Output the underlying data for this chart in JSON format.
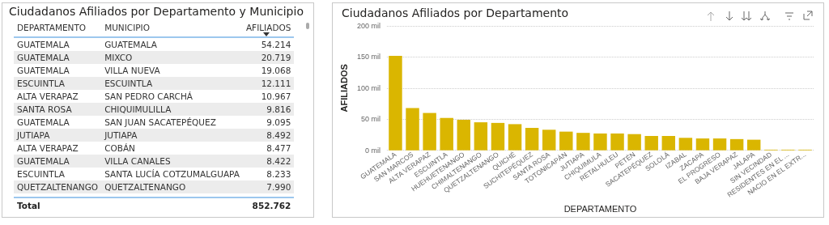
{
  "chart_data": [
    {
      "type": "other",
      "title": "Ciudadanos Afiliados por Departamento y Municipio",
      "annotations": [
        "DEPARTAMENTO",
        "MUNICIPIO",
        "AFILIADOS",
        "GUATEMALA",
        "GUATEMALA",
        "54.214",
        "GUATEMALA",
        "MIXCO",
        "20.719",
        "GUATEMALA",
        "VILLA NUEVA",
        "19.068",
        "ESCUINTLA",
        "ESCUINTLA",
        "12.111",
        "ALTA VERAPAZ",
        "SAN PEDRO CARCHÁ",
        "10.967",
        "SANTA ROSA",
        "CHIQUIMULILLA",
        "9.816",
        "GUATEMALA",
        "SAN JUAN SACATEPÉQUEZ",
        "9.095",
        "JUTIAPA",
        "JUTIAPA",
        "8.492",
        "ALTA VERAPAZ",
        "COBÁN",
        "8.477",
        "GUATEMALA",
        "VILLA CANALES",
        "8.422",
        "ESCUINTLA",
        "SANTA LUCÍA COTZUMALGUAPA",
        "8.233",
        "QUETZALTENANGO",
        "QUETZALTENANGO",
        "7.990",
        "Total",
        "852.762"
      ]
    },
    {
      "type": "bar",
      "title": "Ciudadanos Afiliados por Departamento",
      "xlabel": "DEPARTAMENTO",
      "ylabel": "AFILIADOS",
      "categories": [
        "GUATEMALA",
        "SAN MARCOS",
        "ALTA VERAPAZ",
        "ESCUINTLA",
        "HUEHUETENANGO",
        "CHIMALTENANGO",
        "QUETZALTENANGO",
        "QUICHÉ",
        "SUCHITEPÉQUEZ",
        "SANTA ROSA",
        "TOTONICAPÁN",
        "JUTIAPA",
        "CHIQUIMULA",
        "RETALHULEU",
        "PETÉN",
        "SACATEPÉQUEZ",
        "SOLOLÁ",
        "IZABAL",
        "ZACAPA",
        "EL PROGRESO",
        "BAJA VERAPAZ",
        "JALAPA",
        "SIN VECINDAD",
        "RESIDENTES EN EL ...",
        "NACIO EN EL EXTR..."
      ],
      "values": [
        152,
        68,
        60,
        52,
        49,
        45,
        44,
        42,
        36,
        33,
        30,
        28,
        27,
        27,
        26,
        23,
        23,
        20,
        19,
        19,
        18,
        17,
        1,
        1,
        1
      ],
      "color": "#dab600",
      "ylim": [
        0,
        200
      ],
      "yticks": [
        {
          "value": 0,
          "label": "0 mil"
        },
        {
          "value": 50,
          "label": "50 mil"
        },
        {
          "value": 100,
          "label": "100 mil"
        },
        {
          "value": 150,
          "label": "150 mil"
        },
        {
          "value": 200,
          "label": "200 mil"
        }
      ],
      "grid": "y"
    }
  ]
}
